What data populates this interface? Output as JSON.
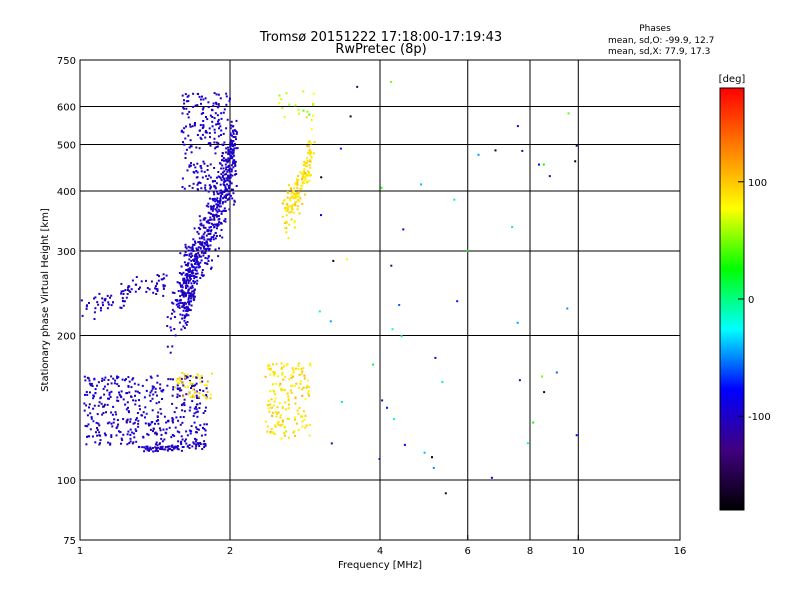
{
  "chart_data": {
    "type": "scatter",
    "title": "Tromsø 20151222 17:18:00-17:19:43",
    "subtitle": "RwPretec (8p)",
    "xlabel": "Frequency [MHz]",
    "ylabel": "Stationary phase Virtual Height [km]",
    "x_scale": "log",
    "y_scale": "log",
    "xlim": [
      1,
      16
    ],
    "ylim": [
      75,
      750
    ],
    "x_ticks": [
      1,
      2,
      4,
      6,
      8,
      10,
      16
    ],
    "x_tick_labels": [
      "1",
      "2",
      "4",
      "6",
      "8",
      "10",
      "16"
    ],
    "y_ticks": [
      75,
      100,
      200,
      300,
      400,
      500,
      600,
      750
    ],
    "y_tick_labels": [
      "75",
      "100",
      "200",
      "300",
      "400",
      "500",
      "600",
      "750"
    ],
    "x_gridlines": [
      2,
      4,
      6,
      8,
      10
    ],
    "y_gridlines": [
      100,
      200,
      300,
      400,
      500,
      600
    ],
    "legend": {
      "heading": "Phases",
      "line1": "mean, sd,O: -99.9, 12.7",
      "line2": "mean, sd,X:  77.9, 17.3",
      "placement": "top-right"
    },
    "colorbar": {
      "label": "[deg]",
      "min": -180,
      "max": 180,
      "ticks": [
        100,
        0,
        -100
      ],
      "tick_labels": [
        "100",
        "0",
        "-100"
      ],
      "colors": [
        "#ff0000",
        "#ff8000",
        "#ffff00",
        "#00ff00",
        "#00ffff",
        "#0000ff",
        "#400080",
        "#000000"
      ]
    },
    "clusters": [
      {
        "name": "",
        "kind": "curve",
        "f": [
          1.6,
          1.65,
          1.7,
          1.8,
          1.9,
          2.0,
          2.05
        ],
        "h": [
          235,
          255,
          280,
          320,
          370,
          440,
          500
        ],
        "jitter_h": 0.12,
        "count": 650,
        "phase": -100,
        "phase_sd": 10
      },
      {
        "name": "",
        "kind": "box",
        "frange": [
          1.6,
          2.0
        ],
        "hrange": [
          400,
          640
        ],
        "count": 220,
        "phase": -100,
        "phase_sd": 12
      },
      {
        "name": "",
        "kind": "curve",
        "f": [
          1.0,
          1.1,
          1.2,
          1.3,
          1.4,
          1.5
        ],
        "h": [
          230,
          232,
          240,
          260,
          250,
          255
        ],
        "jitter_h": 0.04,
        "count": 90,
        "phase": -100,
        "phase_sd": 10
      },
      {
        "name": "",
        "kind": "curve",
        "f": [
          1.5,
          1.55,
          1.6
        ],
        "h": [
          200,
          230,
          260
        ],
        "jitter_h": 0.08,
        "count": 30,
        "phase": -100,
        "phase_sd": 12
      },
      {
        "name": "",
        "kind": "box",
        "frange": [
          1.02,
          1.8
        ],
        "hrange": [
          118,
          165
        ],
        "count": 420,
        "phase": -100,
        "phase_sd": 15
      },
      {
        "name": "",
        "kind": "curve",
        "f": [
          1.3,
          1.45,
          1.6,
          1.8
        ],
        "h": [
          117,
          116,
          117,
          118
        ],
        "jitter_h": 0.01,
        "count": 80,
        "phase": -100,
        "phase_sd": 8
      },
      {
        "name": "",
        "kind": "box",
        "frange": [
          1.55,
          1.85
        ],
        "hrange": [
          148,
          168
        ],
        "count": 50,
        "phase": 90,
        "phase_sd": 15
      },
      {
        "name": "",
        "kind": "curve",
        "f": [
          2.6,
          2.65,
          2.75,
          2.85,
          2.9
        ],
        "h": [
          355,
          370,
          400,
          440,
          500
        ],
        "jitter_h": 0.06,
        "count": 150,
        "phase": 90,
        "phase_sd": 12
      },
      {
        "name": "",
        "kind": "box",
        "frange": [
          2.5,
          3.0
        ],
        "hrange": [
          560,
          650
        ],
        "count": 20,
        "phase": 70,
        "phase_sd": 25
      },
      {
        "name": "",
        "kind": "box",
        "frange": [
          2.35,
          2.9
        ],
        "hrange": [
          122,
          175
        ],
        "count": 160,
        "phase": 90,
        "phase_sd": 15
      },
      {
        "name": "",
        "kind": "box",
        "frange": [
          3.0,
          10.0
        ],
        "hrange": [
          90,
          700
        ],
        "count": 55,
        "phase": -60,
        "phase_sd": 110
      }
    ]
  }
}
